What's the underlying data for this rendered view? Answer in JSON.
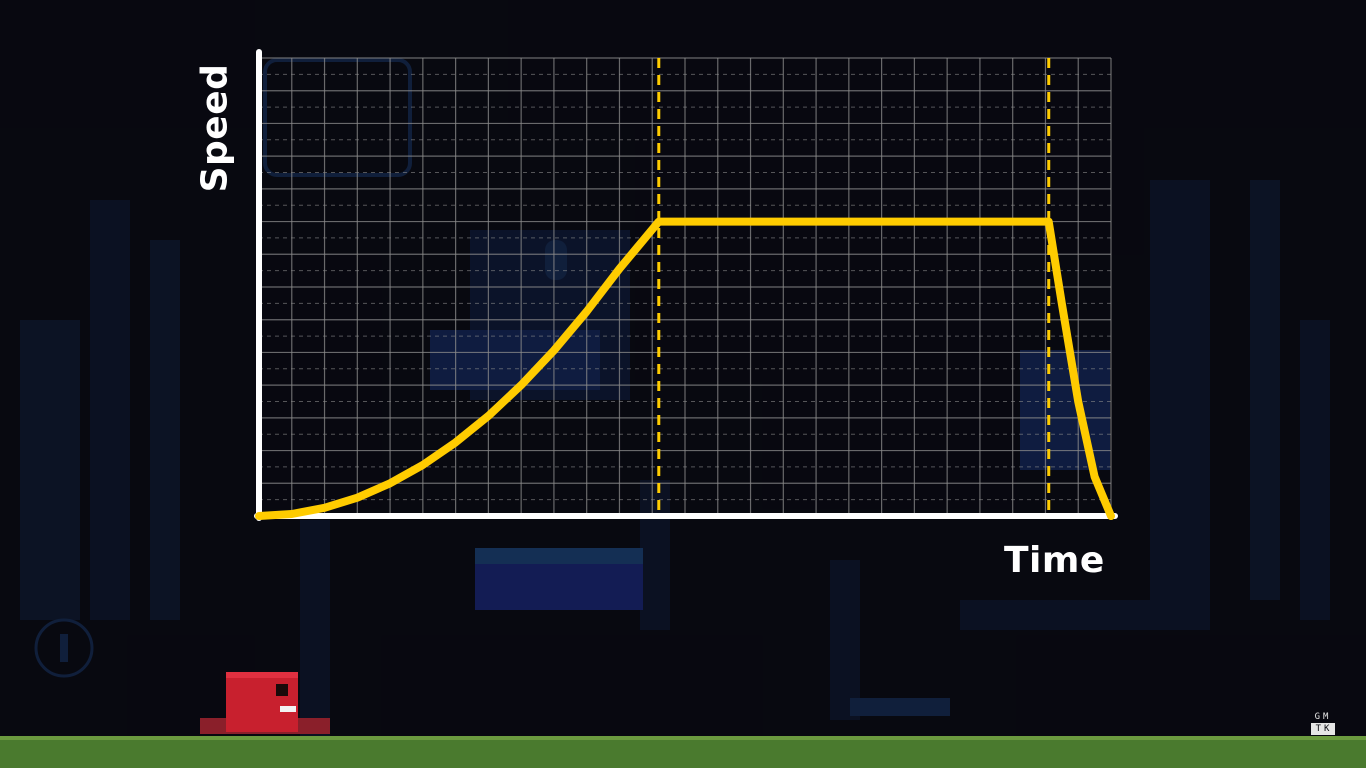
{
  "chart_data": {
    "type": "line",
    "xlabel": "Time",
    "ylabel": "Speed",
    "xlim": [
      0,
      26
    ],
    "ylim": [
      0,
      14
    ],
    "grid": true,
    "series": [
      {
        "x": [
          0,
          1,
          2,
          3,
          4,
          5,
          6,
          7,
          8,
          9,
          10,
          11,
          12.2,
          24.1,
          24.5,
          25,
          25.5,
          26
        ],
        "y": [
          0,
          0.06,
          0.25,
          0.56,
          1.0,
          1.56,
          2.25,
          3.06,
          4.0,
          5.06,
          6.25,
          7.56,
          9.0,
          9.0,
          6.5,
          3.5,
          1.2,
          0
        ]
      }
    ],
    "markers": [
      12.2,
      24.1
    ],
    "colors": {
      "curve": "#ffcc00",
      "marker": "#ffcc00",
      "axis": "#ffffff",
      "grid": "#8a8a8a"
    }
  },
  "watermark": {
    "line1": "GM",
    "line2": "TK"
  }
}
